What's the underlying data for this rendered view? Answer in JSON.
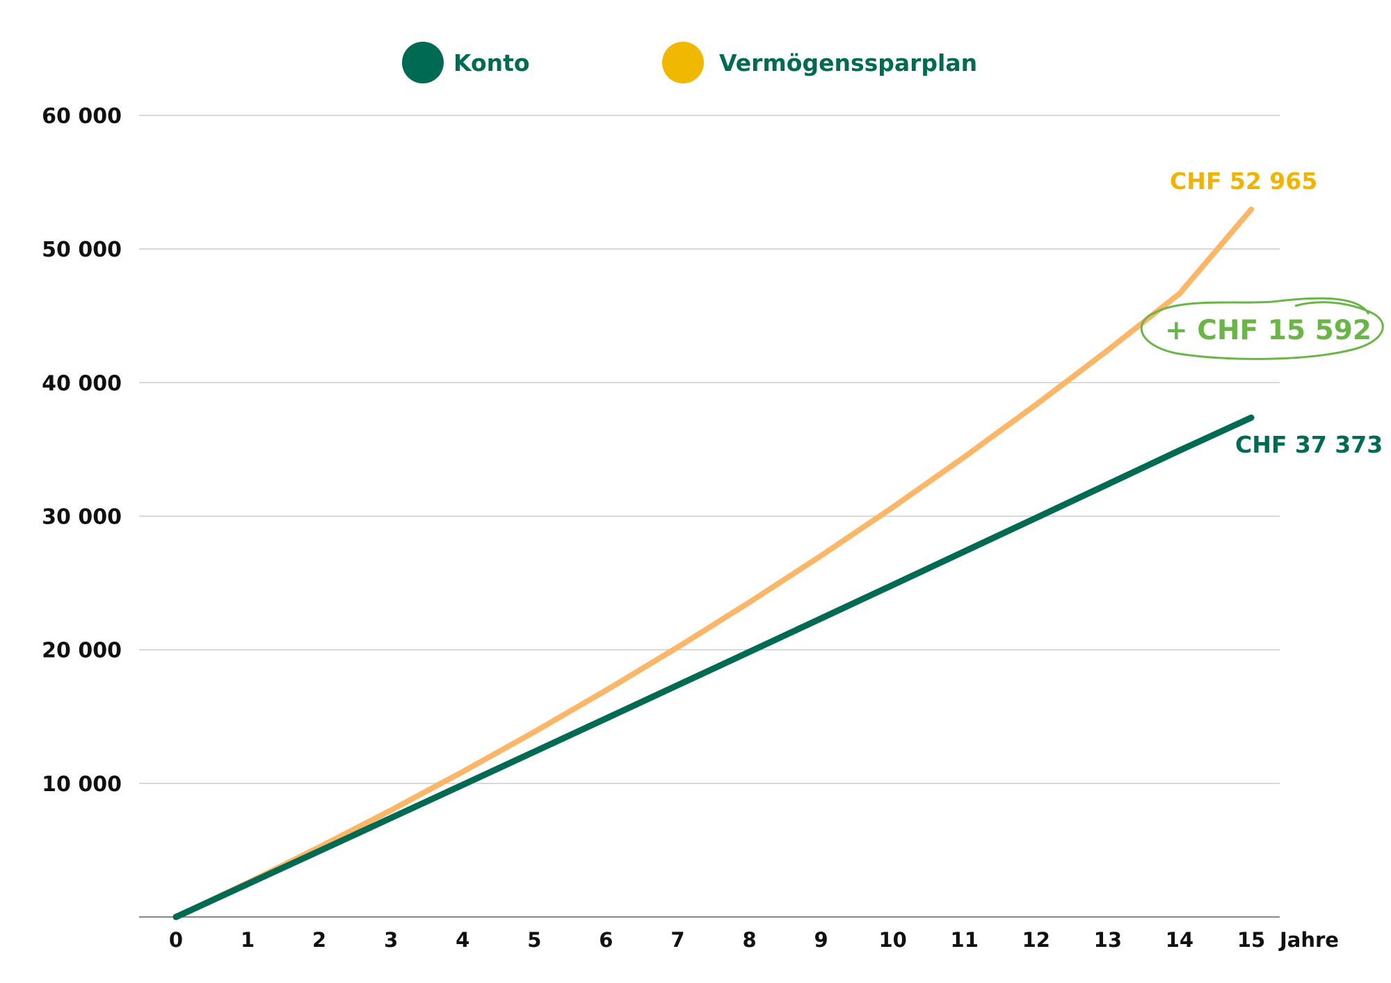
{
  "chart_data": {
    "type": "line",
    "x": [
      0,
      1,
      2,
      3,
      4,
      5,
      6,
      7,
      8,
      9,
      10,
      11,
      12,
      13,
      14,
      15
    ],
    "x_tick_labels": [
      "0",
      "1",
      "2",
      "3",
      "4",
      "5",
      "6",
      "7",
      "8",
      "9",
      "10",
      "11",
      "12",
      "13",
      "14",
      "15"
    ],
    "xlabel": "Jahre",
    "ylabel": "",
    "ylim": [
      0,
      60000
    ],
    "xlim": [
      0,
      15
    ],
    "y_ticks": [
      10000,
      20000,
      30000,
      40000,
      50000,
      60000
    ],
    "y_tick_labels": [
      "10 000",
      "20 000",
      "30 000",
      "40 000",
      "50 000",
      "60 000"
    ],
    "grid": "horizontal",
    "legend_position": "top-center",
    "series": [
      {
        "name": "Konto",
        "color": "#006b52",
        "values": [
          0,
          2465,
          4934,
          7408,
          9886,
          12369,
          14856,
          17348,
          19844,
          22345,
          24851,
          27361,
          29876,
          32395,
          34920,
          37373
        ],
        "end_label": "CHF 37 373"
      },
      {
        "name": "Vermögenssparplan",
        "color": "#fbb667",
        "legend_color": "#f0b800",
        "label_color": "#f0b400",
        "values": [
          0,
          2562,
          5225,
          7993,
          10869,
          13859,
          16966,
          20196,
          23553,
          27042,
          30668,
          34437,
          38355,
          42427,
          46659,
          52965
        ],
        "end_label": "CHF 52 965"
      }
    ],
    "annotations": [
      {
        "text": "+ CHF 15 592",
        "color": "#6ab547"
      }
    ]
  }
}
